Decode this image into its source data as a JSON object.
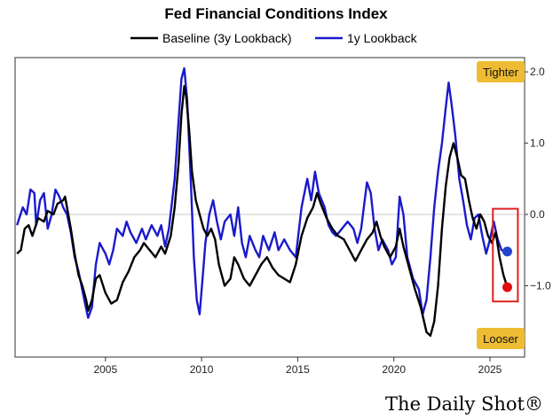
{
  "chart_data": {
    "type": "line",
    "title": "Fed Financial Conditions Index",
    "xlabel": "",
    "ylabel": "",
    "xlim": [
      2000.3,
      2026.8
    ],
    "ylim": [
      -2.0,
      2.2
    ],
    "x_ticks": [
      2005,
      2010,
      2015,
      2020,
      2025
    ],
    "y_ticks": [
      2.0,
      1.0,
      0.0,
      -1.0
    ],
    "y_tick_labels": [
      "2.0",
      "1.0",
      "0.0",
      "−1.0"
    ],
    "grid": false,
    "zero_line": true,
    "legend": "top-center",
    "annotations": {
      "top": "Tighter",
      "bottom": "Looser"
    },
    "source": "The Daily Shot®",
    "series": [
      {
        "name": "Baseline (3y Lookback)",
        "color": "#000000",
        "points": [
          [
            2000.4,
            -0.55
          ],
          [
            2000.6,
            -0.5
          ],
          [
            2000.8,
            -0.2
          ],
          [
            2001.0,
            -0.15
          ],
          [
            2001.2,
            -0.3
          ],
          [
            2001.5,
            -0.05
          ],
          [
            2001.8,
            -0.1
          ],
          [
            2002.0,
            0.05
          ],
          [
            2002.3,
            0.0
          ],
          [
            2002.5,
            0.15
          ],
          [
            2002.8,
            0.2
          ],
          [
            2002.9,
            0.25
          ],
          [
            2003.0,
            0.1
          ],
          [
            2003.2,
            -0.2
          ],
          [
            2003.4,
            -0.55
          ],
          [
            2003.6,
            -0.85
          ],
          [
            2003.8,
            -1.0
          ],
          [
            2004.0,
            -1.2
          ],
          [
            2004.1,
            -1.35
          ],
          [
            2004.3,
            -1.2
          ],
          [
            2004.5,
            -0.9
          ],
          [
            2004.7,
            -0.85
          ],
          [
            2005.0,
            -1.1
          ],
          [
            2005.3,
            -1.25
          ],
          [
            2005.6,
            -1.2
          ],
          [
            2005.9,
            -0.95
          ],
          [
            2006.2,
            -0.8
          ],
          [
            2006.5,
            -0.6
          ],
          [
            2006.8,
            -0.5
          ],
          [
            2007.0,
            -0.4
          ],
          [
            2007.3,
            -0.5
          ],
          [
            2007.6,
            -0.6
          ],
          [
            2007.9,
            -0.45
          ],
          [
            2008.1,
            -0.55
          ],
          [
            2008.4,
            -0.3
          ],
          [
            2008.6,
            0.1
          ],
          [
            2008.8,
            0.7
          ],
          [
            2008.95,
            1.4
          ],
          [
            2009.1,
            1.8
          ],
          [
            2009.2,
            1.65
          ],
          [
            2009.35,
            1.2
          ],
          [
            2009.5,
            0.6
          ],
          [
            2009.7,
            0.2
          ],
          [
            2009.9,
            0.0
          ],
          [
            2010.1,
            -0.2
          ],
          [
            2010.3,
            -0.3
          ],
          [
            2010.5,
            -0.2
          ],
          [
            2010.7,
            -0.35
          ],
          [
            2010.9,
            -0.7
          ],
          [
            2011.2,
            -1.0
          ],
          [
            2011.5,
            -0.9
          ],
          [
            2011.7,
            -0.6
          ],
          [
            2011.9,
            -0.7
          ],
          [
            2012.2,
            -0.9
          ],
          [
            2012.5,
            -1.0
          ],
          [
            2012.8,
            -0.85
          ],
          [
            2013.1,
            -0.7
          ],
          [
            2013.4,
            -0.6
          ],
          [
            2013.7,
            -0.75
          ],
          [
            2014.0,
            -0.85
          ],
          [
            2014.3,
            -0.9
          ],
          [
            2014.6,
            -0.95
          ],
          [
            2014.9,
            -0.7
          ],
          [
            2015.2,
            -0.3
          ],
          [
            2015.5,
            -0.05
          ],
          [
            2015.8,
            0.1
          ],
          [
            2016.0,
            0.3
          ],
          [
            2016.2,
            0.15
          ],
          [
            2016.5,
            -0.05
          ],
          [
            2016.8,
            -0.2
          ],
          [
            2017.1,
            -0.3
          ],
          [
            2017.4,
            -0.35
          ],
          [
            2017.7,
            -0.5
          ],
          [
            2018.0,
            -0.65
          ],
          [
            2018.3,
            -0.5
          ],
          [
            2018.6,
            -0.35
          ],
          [
            2018.9,
            -0.25
          ],
          [
            2019.1,
            -0.1
          ],
          [
            2019.3,
            -0.3
          ],
          [
            2019.5,
            -0.45
          ],
          [
            2019.8,
            -0.6
          ],
          [
            2020.1,
            -0.45
          ],
          [
            2020.3,
            -0.2
          ],
          [
            2020.5,
            -0.45
          ],
          [
            2020.8,
            -0.75
          ],
          [
            2021.1,
            -1.05
          ],
          [
            2021.4,
            -1.3
          ],
          [
            2021.7,
            -1.65
          ],
          [
            2021.9,
            -1.7
          ],
          [
            2022.1,
            -1.5
          ],
          [
            2022.3,
            -1.0
          ],
          [
            2022.5,
            -0.2
          ],
          [
            2022.7,
            0.4
          ],
          [
            2022.9,
            0.8
          ],
          [
            2023.1,
            1.0
          ],
          [
            2023.3,
            0.8
          ],
          [
            2023.5,
            0.55
          ],
          [
            2023.7,
            0.5
          ],
          [
            2023.9,
            0.2
          ],
          [
            2024.1,
            -0.05
          ],
          [
            2024.3,
            -0.2
          ],
          [
            2024.5,
            0.0
          ],
          [
            2024.7,
            -0.1
          ],
          [
            2024.9,
            -0.3
          ],
          [
            2025.1,
            -0.4
          ],
          [
            2025.3,
            -0.25
          ],
          [
            2025.5,
            -0.6
          ],
          [
            2025.7,
            -0.85
          ],
          [
            2025.9,
            -1.02
          ]
        ]
      },
      {
        "name": "1y Lookback",
        "color": "#1a1acc",
        "points": [
          [
            2000.4,
            -0.15
          ],
          [
            2000.7,
            0.1
          ],
          [
            2000.9,
            0.0
          ],
          [
            2001.1,
            0.35
          ],
          [
            2001.3,
            0.3
          ],
          [
            2001.4,
            -0.15
          ],
          [
            2001.6,
            0.2
          ],
          [
            2001.8,
            0.3
          ],
          [
            2002.0,
            -0.2
          ],
          [
            2002.2,
            0.0
          ],
          [
            2002.4,
            0.35
          ],
          [
            2002.6,
            0.25
          ],
          [
            2002.8,
            0.1
          ],
          [
            2003.0,
            0.0
          ],
          [
            2003.2,
            -0.25
          ],
          [
            2003.4,
            -0.6
          ],
          [
            2003.6,
            -0.8
          ],
          [
            2003.9,
            -1.2
          ],
          [
            2004.1,
            -1.45
          ],
          [
            2004.3,
            -1.3
          ],
          [
            2004.5,
            -0.7
          ],
          [
            2004.7,
            -0.4
          ],
          [
            2005.0,
            -0.55
          ],
          [
            2005.2,
            -0.7
          ],
          [
            2005.4,
            -0.5
          ],
          [
            2005.6,
            -0.2
          ],
          [
            2005.9,
            -0.3
          ],
          [
            2006.1,
            -0.1
          ],
          [
            2006.3,
            -0.25
          ],
          [
            2006.6,
            -0.4
          ],
          [
            2006.9,
            -0.2
          ],
          [
            2007.1,
            -0.35
          ],
          [
            2007.4,
            -0.15
          ],
          [
            2007.7,
            -0.3
          ],
          [
            2007.9,
            -0.15
          ],
          [
            2008.1,
            -0.45
          ],
          [
            2008.3,
            -0.2
          ],
          [
            2008.6,
            0.5
          ],
          [
            2008.8,
            1.3
          ],
          [
            2008.95,
            1.9
          ],
          [
            2009.1,
            2.05
          ],
          [
            2009.25,
            1.6
          ],
          [
            2009.45,
            0.4
          ],
          [
            2009.6,
            -0.6
          ],
          [
            2009.75,
            -1.2
          ],
          [
            2009.9,
            -1.4
          ],
          [
            2010.05,
            -0.9
          ],
          [
            2010.2,
            -0.4
          ],
          [
            2010.4,
            0.0
          ],
          [
            2010.6,
            0.2
          ],
          [
            2010.8,
            -0.1
          ],
          [
            2011.0,
            -0.35
          ],
          [
            2011.2,
            -0.1
          ],
          [
            2011.5,
            0.0
          ],
          [
            2011.7,
            -0.3
          ],
          [
            2011.9,
            0.1
          ],
          [
            2012.1,
            -0.4
          ],
          [
            2012.3,
            -0.6
          ],
          [
            2012.5,
            -0.3
          ],
          [
            2012.8,
            -0.5
          ],
          [
            2013.0,
            -0.6
          ],
          [
            2013.2,
            -0.3
          ],
          [
            2013.5,
            -0.5
          ],
          [
            2013.8,
            -0.25
          ],
          [
            2014.0,
            -0.5
          ],
          [
            2014.3,
            -0.35
          ],
          [
            2014.6,
            -0.5
          ],
          [
            2014.9,
            -0.6
          ],
          [
            2015.2,
            0.1
          ],
          [
            2015.5,
            0.5
          ],
          [
            2015.7,
            0.2
          ],
          [
            2015.9,
            0.6
          ],
          [
            2016.1,
            0.3
          ],
          [
            2016.4,
            0.1
          ],
          [
            2016.6,
            -0.15
          ],
          [
            2016.8,
            -0.25
          ],
          [
            2017.0,
            -0.3
          ],
          [
            2017.3,
            -0.2
          ],
          [
            2017.6,
            -0.1
          ],
          [
            2017.9,
            -0.2
          ],
          [
            2018.1,
            -0.4
          ],
          [
            2018.3,
            -0.2
          ],
          [
            2018.6,
            0.45
          ],
          [
            2018.8,
            0.3
          ],
          [
            2019.0,
            -0.2
          ],
          [
            2019.2,
            -0.5
          ],
          [
            2019.4,
            -0.35
          ],
          [
            2019.7,
            -0.5
          ],
          [
            2019.9,
            -0.7
          ],
          [
            2020.1,
            -0.6
          ],
          [
            2020.3,
            0.25
          ],
          [
            2020.5,
            0.0
          ],
          [
            2020.7,
            -0.6
          ],
          [
            2021.0,
            -0.9
          ],
          [
            2021.3,
            -1.05
          ],
          [
            2021.5,
            -1.4
          ],
          [
            2021.7,
            -1.2
          ],
          [
            2021.9,
            -0.6
          ],
          [
            2022.1,
            0.1
          ],
          [
            2022.3,
            0.6
          ],
          [
            2022.5,
            1.0
          ],
          [
            2022.7,
            1.5
          ],
          [
            2022.85,
            1.85
          ],
          [
            2023.0,
            1.55
          ],
          [
            2023.2,
            1.1
          ],
          [
            2023.4,
            0.5
          ],
          [
            2023.6,
            0.2
          ],
          [
            2023.8,
            -0.15
          ],
          [
            2024.0,
            -0.35
          ],
          [
            2024.2,
            -0.05
          ],
          [
            2024.4,
            0.0
          ],
          [
            2024.6,
            -0.3
          ],
          [
            2024.8,
            -0.55
          ],
          [
            2025.0,
            -0.35
          ],
          [
            2025.2,
            -0.1
          ],
          [
            2025.4,
            -0.35
          ],
          [
            2025.6,
            -0.5
          ],
          [
            2025.9,
            -0.52
          ]
        ]
      }
    ],
    "highlight": {
      "x_range": [
        2025.15,
        2026.45
      ],
      "y_range": [
        -1.22,
        0.08
      ],
      "color": "#e02020"
    },
    "end_markers": [
      {
        "series": "1y Lookback",
        "x": 2025.9,
        "y": -0.52,
        "color": "#2244cc"
      },
      {
        "series": "Baseline (3y Lookback)",
        "x": 2025.9,
        "y": -1.02,
        "color": "#e01010"
      }
    ]
  }
}
